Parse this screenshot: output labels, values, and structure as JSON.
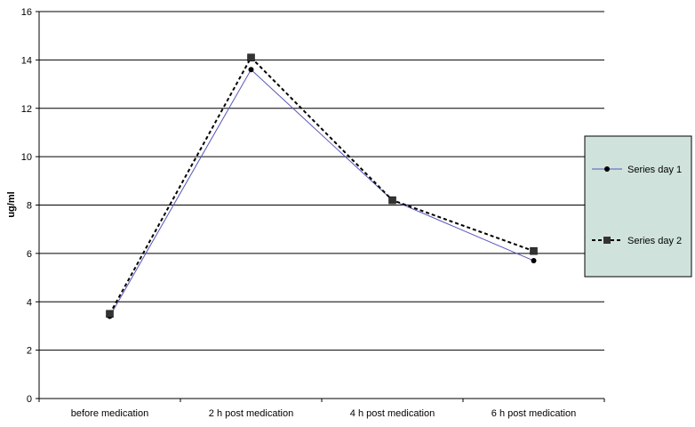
{
  "chart_data": {
    "type": "line",
    "title": "",
    "xlabel": "",
    "ylabel": "ug/ml",
    "ylim": [
      0,
      16
    ],
    "yticks": [
      0,
      2,
      4,
      6,
      8,
      10,
      12,
      14,
      16
    ],
    "grid": true,
    "legend_position": "right",
    "categories": [
      "before medication",
      "2 h post medication",
      "4 h post medication",
      "6 h post medication"
    ],
    "series": [
      {
        "name": "Series day 1",
        "values": [
          3.4,
          13.6,
          8.2,
          5.7
        ],
        "color": "#5555bb",
        "line_style": "solid",
        "marker": "circle"
      },
      {
        "name": "Series day 2",
        "values": [
          3.5,
          14.1,
          8.2,
          6.1
        ],
        "color": "#000000",
        "line_style": "dashed",
        "marker": "square"
      }
    ],
    "legend_background": "#cfe3dc"
  }
}
